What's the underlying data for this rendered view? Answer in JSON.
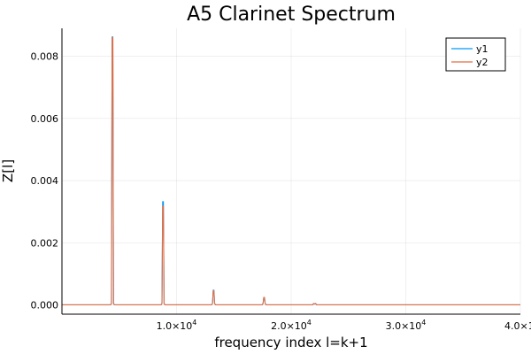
{
  "chart_data": {
    "type": "line",
    "title": "A5 Clarinet Spectrum",
    "xlabel": "frequency index l=k+1",
    "ylabel": "Z[l]",
    "xlim": [
      1,
      40000
    ],
    "ylim": [
      -0.0003,
      0.0089
    ],
    "grid": true,
    "legend": "top-right",
    "x_ticks": [
      {
        "value": 10000,
        "mantissa": "1.0×10",
        "exp": "4"
      },
      {
        "value": 20000,
        "mantissa": "2.0×10",
        "exp": "4"
      },
      {
        "value": 30000,
        "mantissa": "3.0×10",
        "exp": "4"
      },
      {
        "value": 40000,
        "mantissa": "4.0×10",
        "exp": "4"
      }
    ],
    "y_ticks": [
      {
        "value": 0.0,
        "label": "0.000"
      },
      {
        "value": 0.002,
        "label": "0.002"
      },
      {
        "value": 0.004,
        "label": "0.004"
      },
      {
        "value": 0.006,
        "label": "0.006"
      },
      {
        "value": 0.008,
        "label": "0.008"
      }
    ],
    "series": [
      {
        "name": "y1",
        "color": "#009AFA",
        "peaks": [
          {
            "x": 4410,
            "y": 0.00862
          },
          {
            "x": 8820,
            "y": 0.00332
          },
          {
            "x": 13230,
            "y": 0.00047
          },
          {
            "x": 17640,
            "y": 0.00023
          },
          {
            "x": 22050,
            "y": 3e-05
          }
        ]
      },
      {
        "name": "y2",
        "color": "#E26F46",
        "peaks": [
          {
            "x": 4410,
            "y": 0.0086
          },
          {
            "x": 8820,
            "y": 0.00318
          },
          {
            "x": 13230,
            "y": 0.00045
          },
          {
            "x": 17640,
            "y": 0.00024
          },
          {
            "x": 22050,
            "y": 3e-05
          }
        ]
      }
    ]
  }
}
